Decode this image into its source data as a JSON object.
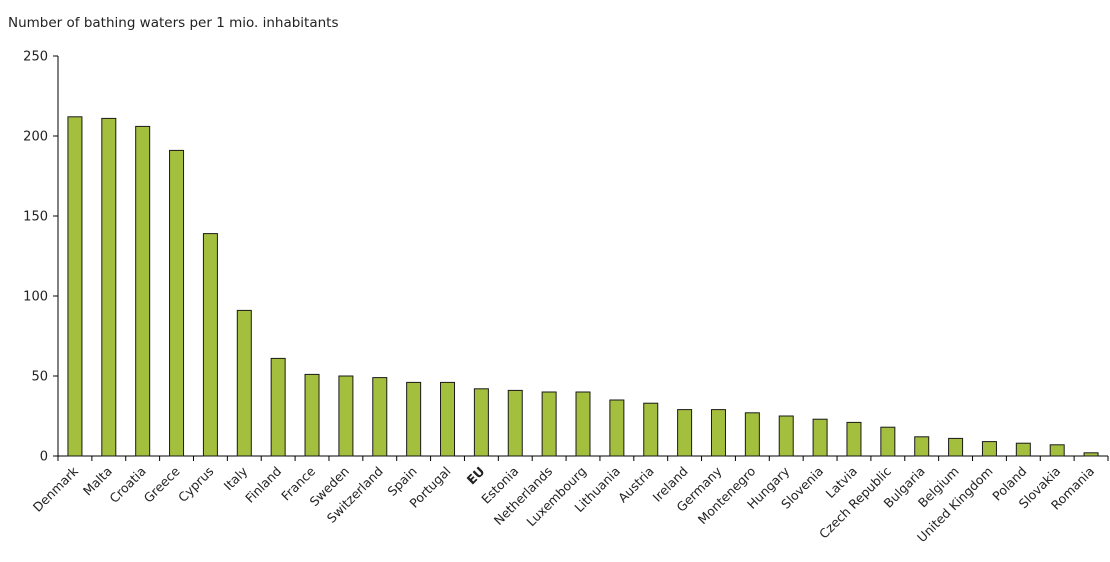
{
  "chart_data": {
    "type": "bar",
    "title": "Number of bathing waters per 1 mio. inhabitants",
    "xlabel": "",
    "ylabel": "",
    "ylim": [
      0,
      250
    ],
    "yticks": [
      0,
      50,
      100,
      150,
      200,
      250
    ],
    "grid": false,
    "legend": "none",
    "bar_color": "#a4bf3d",
    "bar_stroke": "#1a1a1a",
    "categories": [
      "Denmark",
      "Malta",
      "Croatia",
      "Greece",
      "Cyprus",
      "Italy",
      "Finland",
      "France",
      "Sweden",
      "Switzerland",
      "Spain",
      "Portugal",
      "EU",
      "Estonia",
      "Netherlands",
      "Luxembourg",
      "Lithuania",
      "Austria",
      "Ireland",
      "Germany",
      "Montenegro",
      "Hungary",
      "Slovenia",
      "Latvia",
      "Czech Republic",
      "Bulgaria",
      "Belgium",
      "United Kingdom",
      "Poland",
      "Slovakia",
      "Romania"
    ],
    "bold_categories": [
      "EU"
    ],
    "values": [
      212,
      211,
      206,
      191,
      139,
      91,
      61,
      51,
      50,
      49,
      46,
      46,
      42,
      41,
      40,
      40,
      35,
      33,
      29,
      29,
      27,
      25,
      23,
      21,
      18,
      12,
      11,
      9,
      8,
      7,
      2
    ]
  }
}
